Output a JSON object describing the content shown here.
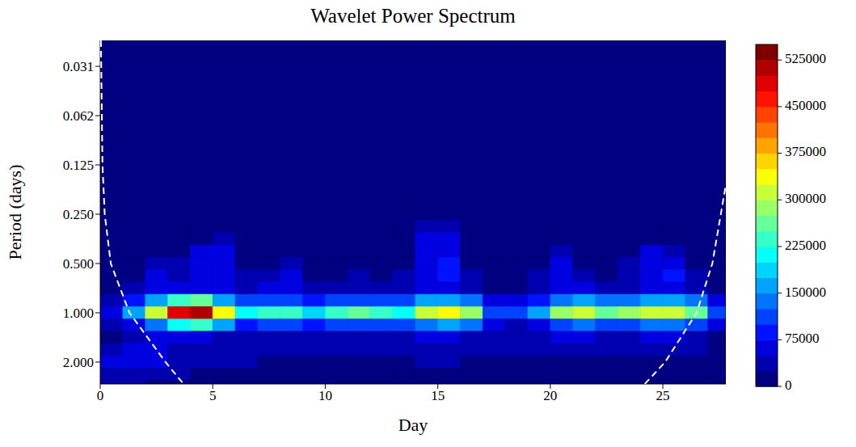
{
  "chart_data": {
    "type": "heatmap",
    "title": "Wavelet Power Spectrum",
    "x_label": "Day",
    "y_label": "Period (days)",
    "xlim": [
      0,
      27.8
    ],
    "xticks": [
      0,
      5,
      10,
      15,
      20,
      25
    ],
    "ylim": [
      0.0217,
      2.72
    ],
    "log": "y",
    "yticks": [
      {
        "value": 0.03125,
        "label": "0.031"
      },
      {
        "value": 0.0625,
        "label": "0.062"
      },
      {
        "value": 0.125,
        "label": "0.125"
      },
      {
        "value": 0.25,
        "label": "0.250"
      },
      {
        "value": 0.5,
        "label": "0.500"
      },
      {
        "value": 1,
        "label": "1.000"
      },
      {
        "value": 2,
        "label": "2.000"
      }
    ],
    "x_edges": [
      0,
      1,
      2,
      3,
      4,
      5,
      6,
      7,
      8,
      9,
      10,
      11,
      12,
      13,
      14,
      15,
      16,
      17,
      18,
      19,
      20,
      21,
      22,
      23,
      24,
      25,
      26,
      27,
      27.8
    ],
    "y_edges": [
      0.273,
      0.324,
      0.386,
      0.459,
      0.545,
      0.648,
      0.771,
      0.917,
      1.091,
      1.297,
      1.542,
      1.834,
      2.181,
      2.594,
      2.72
    ],
    "values": [
      [
        0,
        0,
        0,
        0,
        0,
        10000,
        0,
        0,
        0,
        0,
        0,
        0,
        0,
        0,
        30000,
        30000,
        0,
        0,
        0,
        0,
        0,
        0,
        0,
        0,
        0,
        0,
        0,
        0
      ],
      [
        0,
        0,
        0,
        0,
        20000,
        30000,
        0,
        0,
        0,
        0,
        0,
        0,
        0,
        0,
        50000,
        60000,
        0,
        0,
        0,
        0,
        10000,
        0,
        0,
        0,
        20000,
        20000,
        0,
        0
      ],
      [
        0,
        0,
        20000,
        20000,
        50000,
        60000,
        10000,
        0,
        10000,
        0,
        0,
        0,
        0,
        10000,
        60000,
        70000,
        10000,
        0,
        0,
        10000,
        30000,
        10000,
        10000,
        20000,
        50000,
        40000,
        10000,
        0
      ],
      [
        0,
        10000,
        40000,
        30000,
        60000,
        70000,
        20000,
        20000,
        40000,
        10000,
        10000,
        20000,
        10000,
        20000,
        70000,
        80000,
        20000,
        0,
        0,
        20000,
        50000,
        20000,
        20000,
        30000,
        60000,
        70000,
        20000,
        0
      ],
      [
        5000,
        20000,
        50000,
        40000,
        60000,
        70000,
        30000,
        40000,
        70000,
        20000,
        20000,
        30000,
        20000,
        30000,
        70000,
        80000,
        30000,
        10000,
        10000,
        30000,
        60000,
        30000,
        20000,
        40000,
        70000,
        80000,
        30000,
        5000
      ],
      [
        10000,
        30000,
        60000,
        70000,
        60000,
        60000,
        40000,
        50000,
        60000,
        30000,
        30000,
        40000,
        30000,
        30000,
        60000,
        70000,
        40000,
        20000,
        20000,
        40000,
        70000,
        50000,
        40000,
        40000,
        60000,
        70000,
        40000,
        10000
      ],
      [
        30000,
        80000,
        150000,
        240000,
        260000,
        170000,
        100000,
        110000,
        120000,
        90000,
        110000,
        120000,
        120000,
        110000,
        150000,
        170000,
        140000,
        60000,
        50000,
        80000,
        140000,
        150000,
        140000,
        140000,
        160000,
        150000,
        130000,
        60000
      ],
      [
        50000,
        150000,
        300000,
        480000,
        520000,
        330000,
        200000,
        230000,
        240000,
        180000,
        230000,
        250000,
        240000,
        220000,
        300000,
        340000,
        280000,
        120000,
        100000,
        150000,
        280000,
        300000,
        270000,
        280000,
        320000,
        300000,
        260000,
        120000
      ],
      [
        25000,
        70000,
        140000,
        220000,
        230000,
        150000,
        90000,
        100000,
        110000,
        80000,
        100000,
        110000,
        110000,
        100000,
        140000,
        160000,
        130000,
        50000,
        45000,
        70000,
        120000,
        130000,
        120000,
        120000,
        140000,
        130000,
        110000,
        50000
      ],
      [
        20000,
        40000,
        60000,
        60000,
        50000,
        40000,
        40000,
        40000,
        40000,
        30000,
        40000,
        40000,
        40000,
        40000,
        50000,
        60000,
        40000,
        30000,
        30000,
        40000,
        50000,
        50000,
        40000,
        40000,
        50000,
        50000,
        40000,
        20000
      ],
      [
        40000,
        50000,
        50000,
        40000,
        40000,
        40000,
        30000,
        30000,
        30000,
        30000,
        30000,
        30000,
        30000,
        30000,
        40000,
        40000,
        30000,
        30000,
        30000,
        30000,
        30000,
        30000,
        30000,
        30000,
        30000,
        30000,
        30000,
        20000
      ],
      [
        50000,
        60000,
        50000,
        40000,
        30000,
        30000,
        30000,
        20000,
        20000,
        20000,
        20000,
        20000,
        20000,
        20000,
        30000,
        30000,
        20000,
        20000,
        20000,
        20000,
        20000,
        20000,
        20000,
        20000,
        20000,
        20000,
        20000,
        20000
      ],
      [
        40000,
        40000,
        30000,
        30000,
        20000,
        20000,
        20000,
        20000,
        20000,
        20000,
        20000,
        20000,
        20000,
        20000,
        20000,
        20000,
        20000,
        20000,
        20000,
        20000,
        20000,
        20000,
        20000,
        20000,
        20000,
        20000,
        20000,
        10000
      ],
      [
        30000,
        30000,
        20000,
        20000,
        20000,
        10000,
        10000,
        10000,
        10000,
        10000,
        10000,
        10000,
        10000,
        10000,
        10000,
        10000,
        10000,
        10000,
        10000,
        10000,
        10000,
        10000,
        10000,
        10000,
        10000,
        10000,
        10000,
        10000
      ]
    ],
    "colorbar": {
      "range": [
        0,
        550000
      ],
      "ticks": [
        0,
        75000,
        150000,
        225000,
        300000,
        375000,
        450000,
        525000
      ],
      "levels": [
        0,
        25000,
        50000,
        75000,
        100000,
        125000,
        150000,
        175000,
        200000,
        225000,
        250000,
        275000,
        300000,
        325000,
        350000,
        375000,
        400000,
        425000,
        450000,
        475000,
        500000,
        525000,
        550000
      ]
    },
    "series": [
      {
        "color": "#ffffff",
        "line_style": "dashed",
        "x": [
          0.03,
          0.1,
          0.2,
          0.47,
          1.3,
          2.9,
          3.7
        ],
        "y": [
          0.0217,
          0.125,
          0.25,
          0.5,
          1,
          2,
          2.72
        ]
      },
      {
        "color": "#ffffff",
        "line_style": "dashed",
        "x": [
          24.2,
          25.1,
          26.5,
          27.2,
          27.8
        ],
        "y": [
          2.72,
          2,
          1,
          0.5,
          0.165
        ]
      }
    ]
  }
}
